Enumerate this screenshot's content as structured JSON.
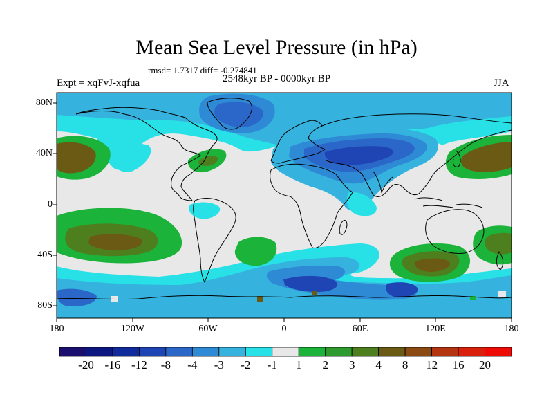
{
  "title": "Mean Sea Level Pressure (in hPa)",
  "stats": "rmsd= 1.7317 diff= -0.274841",
  "experiment": "Expt = xqFvJ-xqfua",
  "period": "2548kyr BP - 0000kyr BP",
  "season": "JJA",
  "lat_labels": [
    "80N",
    "40N",
    "0",
    "40S",
    "80S"
  ],
  "lon_labels": [
    "180",
    "120W",
    "60W",
    "0",
    "60E",
    "120E",
    "180"
  ],
  "colorbar": {
    "labels": [
      "-20",
      "-16",
      "-12",
      "-8",
      "-4",
      "-3",
      "-2",
      "-1",
      "1",
      "2",
      "3",
      "4",
      "8",
      "12",
      "16",
      "20"
    ],
    "colors": [
      "#1a0e6e",
      "#0d1780",
      "#102a9c",
      "#1f45b4",
      "#2b67c8",
      "#2f8ad6",
      "#35b3de",
      "#28e1e6",
      "#e8e8e8",
      "#1bb33a",
      "#2e9a2e",
      "#4e7f1e",
      "#6b5a14",
      "#8a4a12",
      "#b23410",
      "#d8200c",
      "#ee0a06"
    ]
  },
  "colors": {
    "background_zero": "#e8e8e8",
    "low_light": "#28e1e6",
    "low_mid": "#35b3de",
    "low_deep": "#2f8ad6",
    "low_deeper": "#2b67c8",
    "low_core": "#1f45b4",
    "high_light": "#1bb33a",
    "high_mid": "#2e9a2e",
    "high_core": "#6b5a14",
    "coast": "#000000"
  }
}
